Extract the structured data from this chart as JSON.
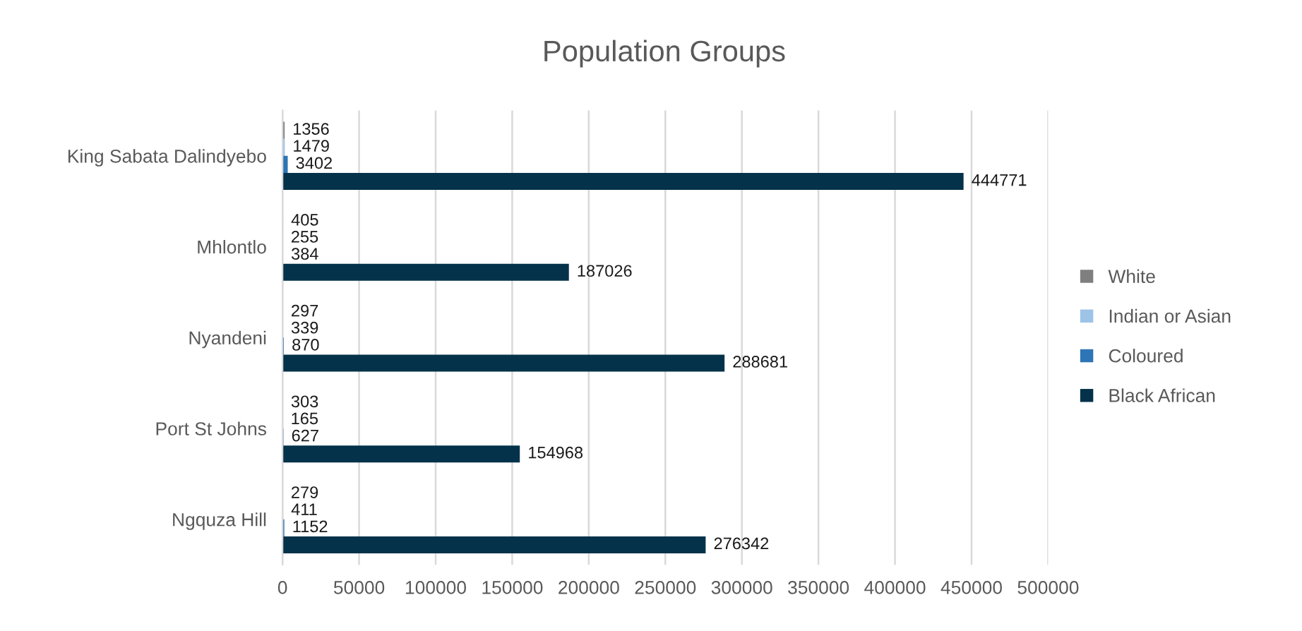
{
  "chart_data": {
    "type": "bar",
    "orientation": "horizontal",
    "title": "Population Groups",
    "categories": [
      "King Sabata Dalindyebo",
      "Mhlontlo",
      "Nyandeni",
      "Port St Johns",
      "Ngquza Hill"
    ],
    "series": [
      {
        "name": "White",
        "color": "#7f7f7f",
        "values": [
          1356,
          405,
          297,
          303,
          279
        ]
      },
      {
        "name": "Indian or Asian",
        "color": "#9dc3e6",
        "values": [
          1479,
          255,
          339,
          165,
          411
        ]
      },
      {
        "name": "Coloured",
        "color": "#2e75b6",
        "values": [
          3402,
          384,
          870,
          627,
          1152
        ]
      },
      {
        "name": "Black African",
        "color": "#03324a",
        "values": [
          444771,
          187026,
          288681,
          154968,
          276342
        ]
      }
    ],
    "xlim": [
      0,
      500000
    ],
    "xticks": [
      0,
      50000,
      100000,
      150000,
      200000,
      250000,
      300000,
      350000,
      400000,
      450000,
      500000
    ],
    "grid": "x",
    "legend": "right",
    "data_labels": true
  }
}
